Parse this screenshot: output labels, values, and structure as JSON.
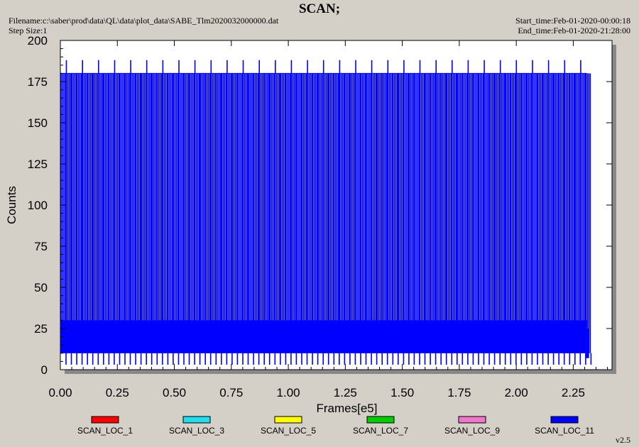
{
  "header": {
    "title": "SCAN;",
    "filename": "Filename:c:\\saber\\prod\\data\\QL\\data\\plot_data\\SABE_Tlm2020032000000.dat",
    "step_size": "Step Size:1",
    "start_time": "Start_time:Feb-01-2020-00:00:18",
    "end_time": "End_time:Feb-01-2020-21:28:00"
  },
  "footer": {
    "version": "v2.5"
  },
  "colors": {
    "background": "#d4d0c8",
    "plot_bg": "#ffffff",
    "shadow": "#888888"
  },
  "chart_data": {
    "type": "line",
    "xlabel": "Frames[e5]",
    "ylabel": "Counts",
    "xlim": [
      0,
      2.42
    ],
    "ylim": [
      0,
      200
    ],
    "x_ticks": [
      "0.00",
      "0.25",
      "0.50",
      "0.75",
      "1.00",
      "1.25",
      "1.50",
      "1.75",
      "2.00",
      "2.25"
    ],
    "x_tick_values": [
      0,
      0.25,
      0.5,
      0.75,
      1.0,
      1.25,
      1.5,
      1.75,
      2.0,
      2.25
    ],
    "y_ticks": [
      "0",
      "25",
      "50",
      "75",
      "100",
      "125",
      "150",
      "175",
      "200"
    ],
    "y_tick_values": [
      0,
      25,
      50,
      75,
      100,
      125,
      150,
      175,
      200
    ],
    "legend_position": "bottom",
    "series": [
      {
        "name": "SCAN_LOC_1",
        "color": "#ff0000",
        "band": [
          10,
          30
        ]
      },
      {
        "name": "SCAN_LOC_3",
        "color": "#22ddee",
        "band": [
          10,
          30
        ]
      },
      {
        "name": "SCAN_LOC_5",
        "color": "#ffff00",
        "band": [
          10,
          30
        ]
      },
      {
        "name": "SCAN_LOC_7",
        "color": "#00cc00",
        "band": [
          10,
          30
        ]
      },
      {
        "name": "SCAN_LOC_9",
        "color": "#ee77cc",
        "band": [
          10,
          30
        ]
      },
      {
        "name": "SCAN_LOC_11",
        "color": "#0000ff",
        "band": [
          10,
          30
        ],
        "x_end": 2.31,
        "spike_max": 180,
        "spike_peak": 188,
        "spike_period": 0.0235,
        "dip_min": 3
      }
    ]
  }
}
